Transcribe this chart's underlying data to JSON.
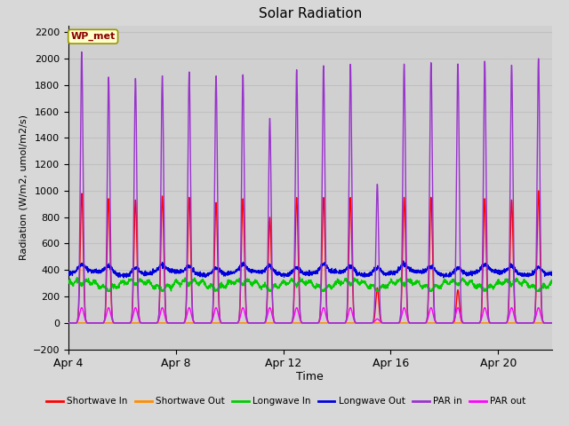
{
  "title": "Solar Radiation",
  "ylabel": "Radiation (W/m2, umol/m2/s)",
  "xlabel": "Time",
  "ylim": [
    -200,
    2250
  ],
  "yticks": [
    -200,
    0,
    200,
    400,
    600,
    800,
    1000,
    1200,
    1400,
    1600,
    1800,
    2000,
    2200
  ],
  "background_color": "#d8d8d8",
  "plot_bg_color": "#d0d0d0",
  "grid_color": "#bbbbbb",
  "annotation_text": "WP_met",
  "annotation_bg": "#ffffcc",
  "annotation_border": "#999900",
  "annotation_text_color": "#8b0000",
  "series": {
    "shortwave_in": {
      "color": "#ff0000",
      "label": "Shortwave In",
      "lw": 1.0
    },
    "shortwave_out": {
      "color": "#ff8c00",
      "label": "Shortwave Out",
      "lw": 1.0
    },
    "longwave_in": {
      "color": "#00cc00",
      "label": "Longwave In",
      "lw": 1.0
    },
    "longwave_out": {
      "color": "#0000dd",
      "label": "Longwave Out",
      "lw": 1.0
    },
    "par_in": {
      "color": "#9933cc",
      "label": "PAR in",
      "lw": 1.0
    },
    "par_out": {
      "color": "#ff00ff",
      "label": "PAR out",
      "lw": 1.0
    }
  },
  "x_tick_labels": [
    "Apr 4",
    "Apr 8",
    "Apr 12",
    "Apr 16",
    "Apr 20"
  ],
  "x_tick_positions": [
    0,
    4,
    8,
    12,
    16
  ],
  "n_days": 18,
  "n_points_per_day": 144,
  "figsize": [
    6.4,
    4.8
  ],
  "dpi": 100
}
